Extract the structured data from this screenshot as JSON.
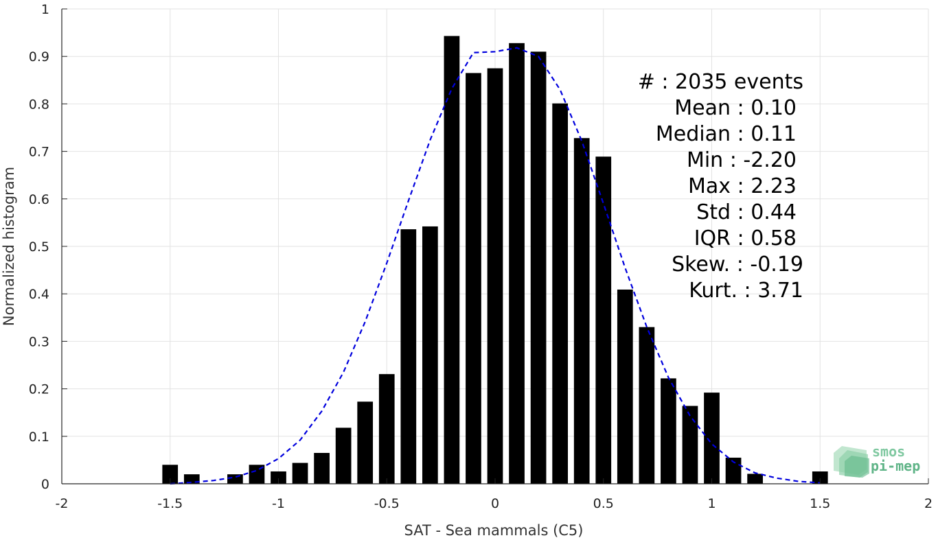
{
  "chart_data": {
    "type": "bar",
    "xlabel": "SAT - Sea mammals (C5)",
    "ylabel": "Normalized histogram",
    "xlim": [
      -2,
      2
    ],
    "ylim": [
      0,
      1
    ],
    "xticks": [
      "-2",
      "-1.5",
      "-1",
      "-0.5",
      "0",
      "0.5",
      "1",
      "1.5",
      "2"
    ],
    "yticks": [
      "0",
      "0.1",
      "0.2",
      "0.3",
      "0.4",
      "0.5",
      "0.6",
      "0.7",
      "0.8",
      "0.9",
      "1"
    ],
    "grid": true,
    "bar_color": "#000000",
    "bars": {
      "x": [
        -1.5,
        -1.4,
        -1.2,
        -1.1,
        -1.0,
        -0.9,
        -0.8,
        -0.7,
        -0.6,
        -0.5,
        -0.4,
        -0.3,
        -0.2,
        -0.1,
        0.0,
        0.1,
        0.2,
        0.3,
        0.4,
        0.5,
        0.6,
        0.7,
        0.8,
        0.9,
        1.0,
        1.1,
        1.2,
        1.5
      ],
      "values": [
        0.04,
        0.02,
        0.02,
        0.04,
        0.026,
        0.044,
        0.065,
        0.118,
        0.173,
        0.231,
        0.536,
        0.542,
        0.943,
        0.865,
        0.875,
        0.928,
        0.91,
        0.801,
        0.728,
        0.689,
        0.409,
        0.33,
        0.222,
        0.164,
        0.192,
        0.055,
        0.021,
        0.026
      ]
    },
    "fit_curve": {
      "style": "dashed",
      "color": "#0000dd",
      "x": [
        -1.5,
        -1.4,
        -1.3,
        -1.2,
        -1.1,
        -1.0,
        -0.9,
        -0.8,
        -0.7,
        -0.6,
        -0.5,
        -0.4,
        -0.3,
        -0.2,
        -0.1,
        0.0,
        0.1,
        0.2,
        0.3,
        0.4,
        0.5,
        0.6,
        0.7,
        0.8,
        0.9,
        1.0,
        1.1,
        1.2,
        1.3,
        1.4,
        1.5
      ],
      "y": [
        0.0,
        0.003,
        0.007,
        0.014,
        0.028,
        0.053,
        0.092,
        0.153,
        0.235,
        0.341,
        0.465,
        0.596,
        0.724,
        0.832,
        0.908,
        0.91,
        0.918,
        0.9,
        0.83,
        0.722,
        0.59,
        0.455,
        0.33,
        0.224,
        0.143,
        0.084,
        0.046,
        0.023,
        0.012,
        0.005,
        0.002
      ]
    },
    "stats": [
      "#  : 2035 events",
      "Mean : 0.10",
      "Median : 0.11",
      "Min : -2.20",
      "Max : 2.23",
      "Std : 0.44",
      "IQR : 0.58",
      "Skew. : -0.19",
      "Kurt. : 3.71"
    ]
  },
  "logo": {
    "line1": "smos",
    "line2": "pi-mep",
    "color": "#7fc8a0"
  }
}
